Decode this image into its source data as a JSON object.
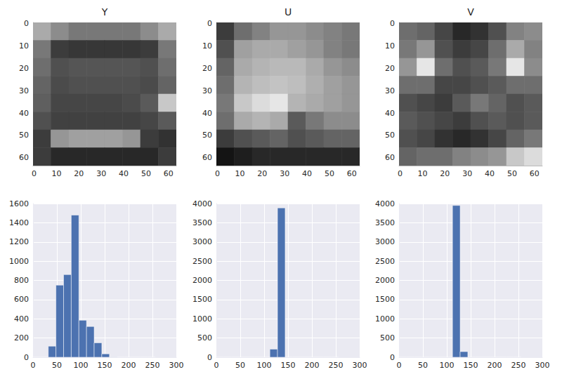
{
  "chart_data": [
    {
      "type": "heatmap",
      "title": "Y",
      "grid": false,
      "xlim": [
        -0.5,
        63.5
      ],
      "ylim": [
        63.5,
        -0.5
      ],
      "xticks": [
        0,
        10,
        20,
        30,
        40,
        50,
        60
      ],
      "yticks": [
        0,
        10,
        20,
        30,
        40,
        50,
        60
      ],
      "cell_range": [
        0,
        255
      ],
      "cells": [
        [
          170,
          140,
          120,
          120,
          120,
          120,
          140,
          170
        ],
        [
          120,
          60,
          55,
          55,
          55,
          55,
          60,
          120
        ],
        [
          110,
          80,
          85,
          85,
          85,
          85,
          80,
          110
        ],
        [
          100,
          75,
          80,
          80,
          80,
          80,
          75,
          100
        ],
        [
          95,
          70,
          70,
          70,
          70,
          75,
          90,
          200
        ],
        [
          80,
          65,
          65,
          65,
          65,
          65,
          70,
          90
        ],
        [
          60,
          150,
          160,
          160,
          160,
          150,
          60,
          50
        ],
        [
          60,
          40,
          40,
          40,
          40,
          40,
          40,
          60
        ]
      ]
    },
    {
      "type": "heatmap",
      "title": "U",
      "grid": false,
      "xlim": [
        -0.5,
        63.5
      ],
      "ylim": [
        63.5,
        -0.5
      ],
      "xticks": [
        0,
        10,
        20,
        30,
        40,
        50,
        60
      ],
      "yticks": [
        0,
        10,
        20,
        30,
        40,
        50,
        60
      ],
      "cell_range": [
        0,
        255
      ],
      "cells": [
        [
          60,
          110,
          130,
          150,
          150,
          140,
          130,
          120
        ],
        [
          80,
          160,
          170,
          170,
          160,
          150,
          130,
          120
        ],
        [
          100,
          170,
          180,
          185,
          185,
          170,
          150,
          140
        ],
        [
          110,
          180,
          190,
          195,
          190,
          175,
          160,
          150
        ],
        [
          120,
          200,
          220,
          230,
          180,
          170,
          160,
          150
        ],
        [
          110,
          170,
          180,
          170,
          90,
          120,
          140,
          140
        ],
        [
          60,
          80,
          90,
          100,
          80,
          90,
          100,
          100
        ],
        [
          20,
          30,
          40,
          40,
          40,
          40,
          40,
          40
        ]
      ]
    },
    {
      "type": "heatmap",
      "title": "V",
      "grid": false,
      "xlim": [
        -0.5,
        63.5
      ],
      "ylim": [
        63.5,
        -0.5
      ],
      "xticks": [
        0,
        10,
        20,
        30,
        40,
        50,
        60
      ],
      "yticks": [
        0,
        10,
        20,
        30,
        40,
        50,
        60
      ],
      "cell_range": [
        0,
        255
      ],
      "cells": [
        [
          110,
          100,
          70,
          40,
          50,
          80,
          130,
          140
        ],
        [
          120,
          150,
          80,
          60,
          70,
          110,
          170,
          130
        ],
        [
          150,
          230,
          110,
          80,
          90,
          120,
          230,
          140
        ],
        [
          110,
          110,
          70,
          70,
          80,
          90,
          110,
          110
        ],
        [
          80,
          70,
          60,
          90,
          120,
          100,
          80,
          90
        ],
        [
          90,
          80,
          70,
          60,
          80,
          90,
          80,
          90
        ],
        [
          80,
          70,
          50,
          40,
          50,
          70,
          100,
          120
        ],
        [
          100,
          110,
          110,
          130,
          140,
          150,
          200,
          220
        ]
      ]
    },
    {
      "type": "histogram",
      "color": "#4c72b0",
      "grid": true,
      "bins": [
        0,
        16,
        32,
        48,
        64,
        80,
        96,
        112,
        128,
        144,
        160,
        176,
        192,
        208,
        224,
        240,
        256
      ],
      "values": [
        0,
        0,
        115,
        750,
        860,
        1480,
        385,
        320,
        150,
        35,
        1,
        0,
        0,
        0,
        0,
        0
      ],
      "xlim": [
        0,
        300
      ],
      "xticks": [
        0,
        50,
        100,
        150,
        200,
        250,
        300
      ],
      "ylim": [
        0,
        1600
      ],
      "yticks": [
        0,
        200,
        400,
        600,
        800,
        1000,
        1200,
        1400,
        1600
      ]
    },
    {
      "type": "histogram",
      "color": "#4c72b0",
      "grid": true,
      "bins": [
        0,
        16,
        32,
        48,
        64,
        80,
        96,
        112,
        128,
        144,
        160,
        176,
        192,
        208,
        224,
        240,
        256
      ],
      "values": [
        0,
        0,
        0,
        0,
        0,
        0,
        0,
        210,
        3886,
        0,
        0,
        0,
        0,
        0,
        0,
        0
      ],
      "xlim": [
        0,
        300
      ],
      "xticks": [
        0,
        50,
        100,
        150,
        200,
        250,
        300
      ],
      "ylim": [
        0,
        4000
      ],
      "yticks": [
        0,
        500,
        1000,
        1500,
        2000,
        2500,
        3000,
        3500,
        4000
      ]
    },
    {
      "type": "histogram",
      "color": "#4c72b0",
      "grid": true,
      "bins": [
        0,
        16,
        32,
        48,
        64,
        80,
        96,
        112,
        128,
        144,
        160,
        176,
        192,
        208,
        224,
        240,
        256
      ],
      "values": [
        0,
        0,
        0,
        0,
        0,
        0,
        0,
        3950,
        146,
        0,
        0,
        0,
        0,
        0,
        0,
        0
      ],
      "xlim": [
        0,
        300
      ],
      "xticks": [
        0,
        50,
        100,
        150,
        200,
        250,
        300
      ],
      "ylim": [
        0,
        4000
      ],
      "yticks": [
        0,
        500,
        1000,
        1500,
        2000,
        2500,
        3000,
        3500,
        4000
      ]
    }
  ]
}
